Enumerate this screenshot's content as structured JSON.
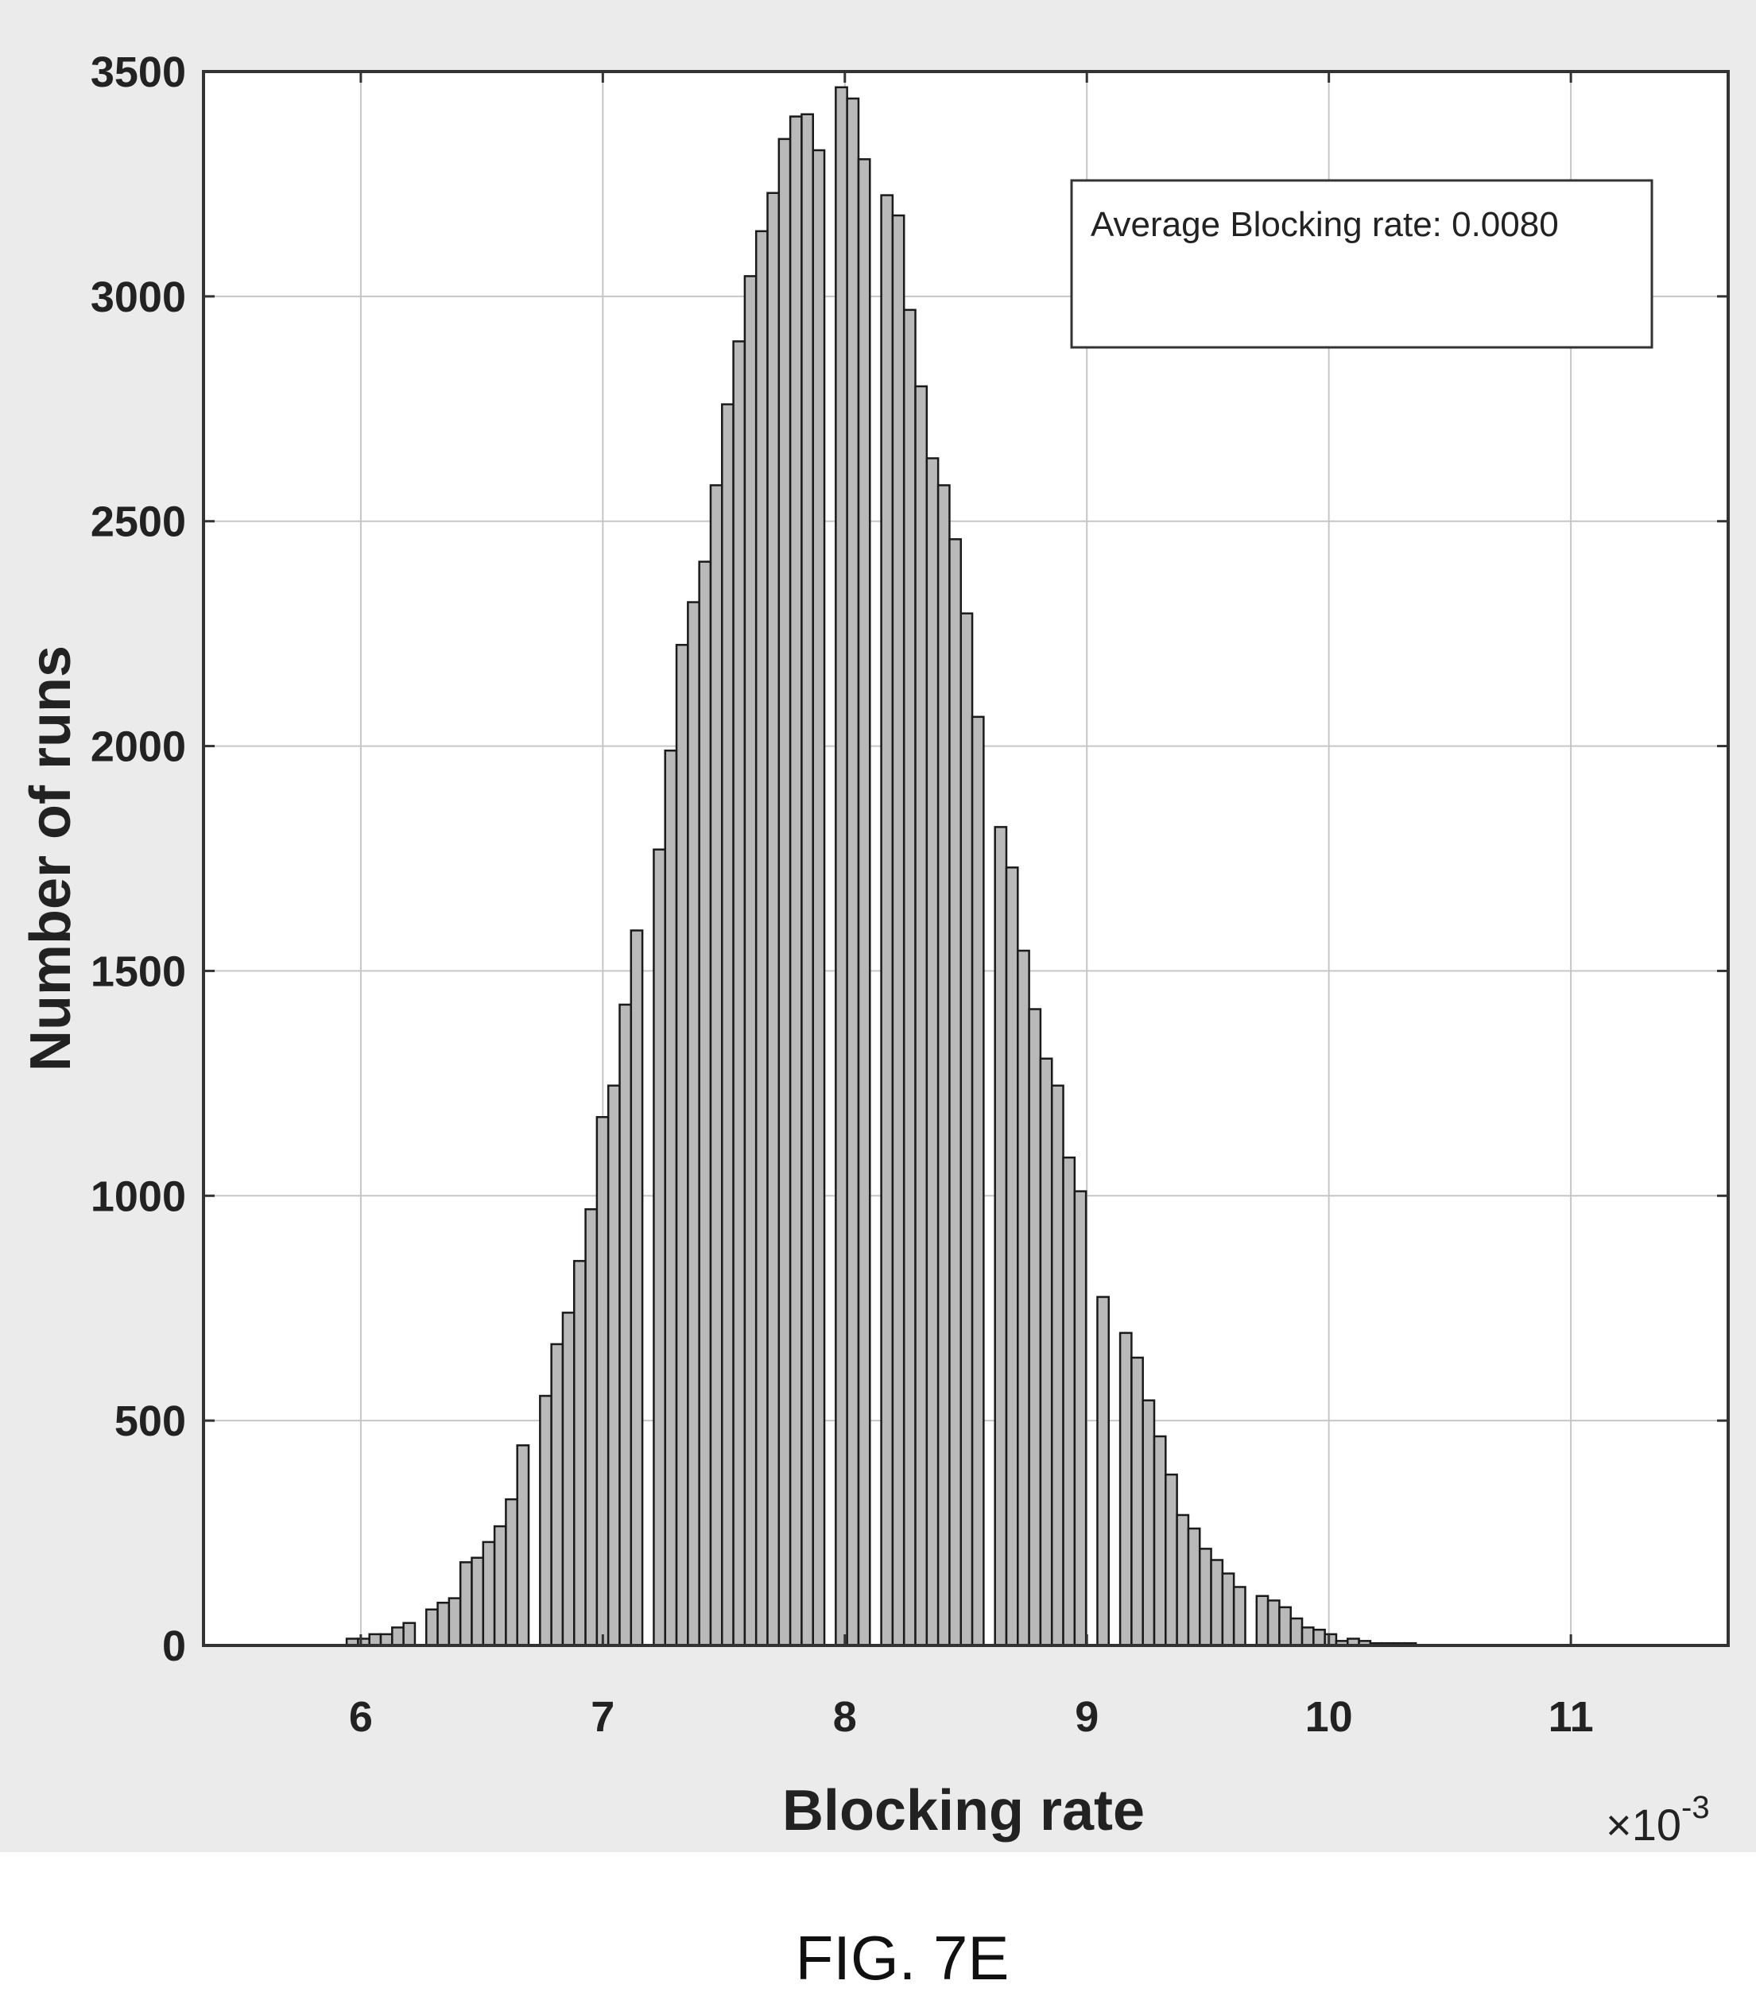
{
  "figure_label": "FIG. 7E",
  "chart_data": {
    "type": "bar",
    "title": "",
    "xlabel": "Blocking rate",
    "ylabel": "Number of runs",
    "x_multiplier_base": "×10",
    "x_multiplier_exp": "-3",
    "xlim": [
      5.35,
      11.65
    ],
    "ylim": [
      0,
      3500
    ],
    "xticks": [
      6,
      7,
      8,
      9,
      10,
      11
    ],
    "yticks": [
      0,
      500,
      1000,
      1500,
      2000,
      2500,
      3000,
      3500
    ],
    "grid": true,
    "bar_color": "#b9b9b9",
    "annotation": "Average Blocking rate: 0.0080",
    "x": [
      5.965,
      6.012,
      6.059,
      6.106,
      6.153,
      6.2,
      6.247,
      6.294,
      6.341,
      6.388,
      6.435,
      6.482,
      6.529,
      6.576,
      6.623,
      6.67,
      6.717,
      6.764,
      6.811,
      6.858,
      6.905,
      6.952,
      6.999,
      7.046,
      7.093,
      7.14,
      7.187,
      7.234,
      7.281,
      7.328,
      7.375,
      7.422,
      7.469,
      7.516,
      7.563,
      7.61,
      7.657,
      7.704,
      7.751,
      7.798,
      7.845,
      7.892,
      7.939,
      7.986,
      8.033,
      8.08,
      8.127,
      8.174,
      8.221,
      8.268,
      8.315,
      8.362,
      8.409,
      8.456,
      8.503,
      8.55,
      8.597,
      8.644,
      8.691,
      8.738,
      8.785,
      8.832,
      8.879,
      8.926,
      8.973,
      9.02,
      9.067,
      9.114,
      9.161,
      9.208,
      9.255,
      9.302,
      9.349,
      9.396,
      9.443,
      9.49,
      9.537,
      9.584,
      9.631,
      9.678,
      9.725,
      9.772,
      9.819,
      9.866,
      9.913,
      9.96,
      10.007,
      10.054,
      10.101,
      10.148,
      10.195,
      10.242,
      10.289,
      10.336,
      10.383,
      10.43,
      10.477
    ],
    "values": [
      15,
      15,
      25,
      25,
      40,
      50,
      0,
      80,
      95,
      105,
      185,
      195,
      230,
      265,
      325,
      445,
      0,
      555,
      670,
      740,
      855,
      970,
      1175,
      1245,
      1425,
      1590,
      0,
      1770,
      1990,
      2225,
      2320,
      2410,
      2580,
      2760,
      2900,
      3045,
      3145,
      3230,
      3350,
      3400,
      3405,
      3325,
      0,
      3465,
      3440,
      3305,
      0,
      3225,
      3180,
      2970,
      2800,
      2640,
      2580,
      2460,
      2295,
      2065,
      0,
      1820,
      1730,
      1545,
      1415,
      1305,
      1245,
      1085,
      1010,
      0,
      775,
      0,
      695,
      640,
      545,
      465,
      380,
      290,
      260,
      215,
      190,
      160,
      130,
      0,
      110,
      100,
      85,
      60,
      40,
      35,
      25,
      10,
      15,
      10,
      5,
      5,
      5,
      5,
      0,
      0,
      0
    ]
  }
}
